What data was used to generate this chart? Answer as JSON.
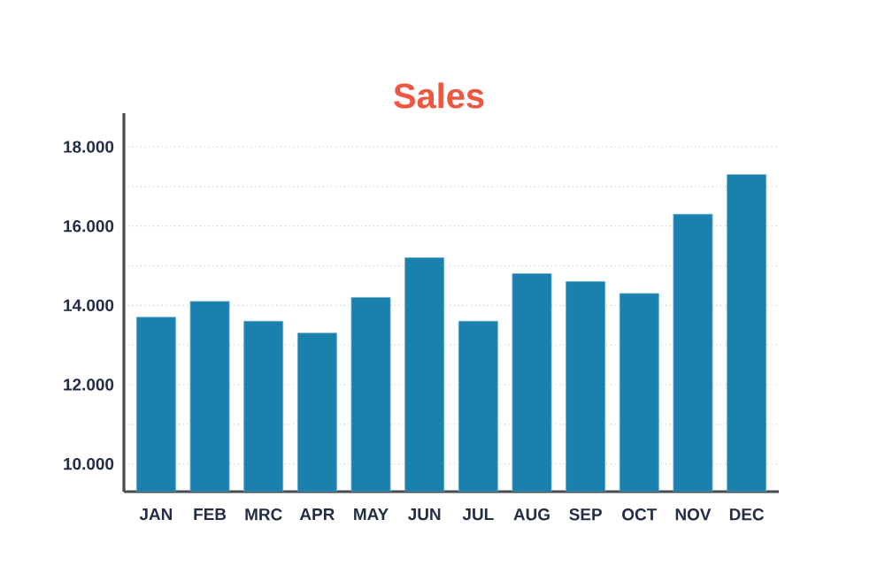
{
  "chart_data": {
    "type": "bar",
    "title": "Sales",
    "categories": [
      "JAN",
      "FEB",
      "MRC",
      "APR",
      "MAY",
      "JUN",
      "JUL",
      "AUG",
      "SEP",
      "OCT",
      "NOV",
      "DEC"
    ],
    "values": [
      13700,
      14100,
      13600,
      13300,
      14200,
      15200,
      13600,
      14800,
      14600,
      14300,
      16300,
      17300
    ],
    "color": "#1a80ae",
    "ylim": [
      9300,
      18850
    ],
    "yticks": [
      {
        "value": 10000,
        "label": "10.000"
      },
      {
        "value": 11000,
        "label": null
      },
      {
        "value": 12000,
        "label": "12.000"
      },
      {
        "value": 13000,
        "label": null
      },
      {
        "value": 14000,
        "label": "14.000"
      },
      {
        "value": 15000,
        "label": null
      },
      {
        "value": 16000,
        "label": "16.000"
      },
      {
        "value": 17000,
        "label": null
      },
      {
        "value": 18000,
        "label": "18.000"
      }
    ],
    "grid": "y"
  }
}
